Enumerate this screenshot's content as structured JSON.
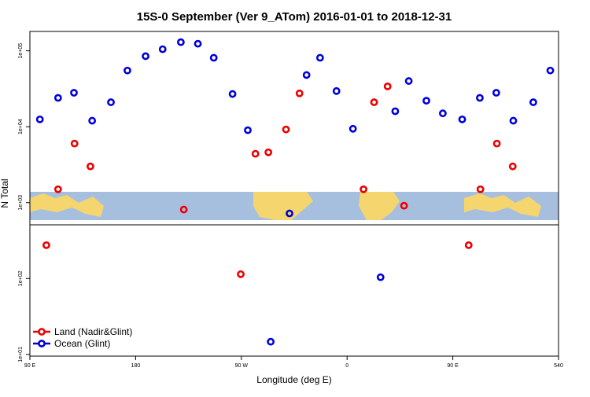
{
  "chart_data": {
    "type": "scatter",
    "title": "15S-0 September (Ver 9_ATom)   2016-01-01 to 2018-12-31",
    "x_label": "Longitude (deg E)",
    "y_label": "N Total",
    "log_y": true,
    "legend": "bottom-left",
    "xlim": [
      90,
      540
    ],
    "ylim": [
      9.5,
      180000
    ],
    "xticks": [
      {
        "value": 90,
        "label": "90 E"
      },
      180,
      {
        "value": 270,
        "label": "90 W"
      },
      {
        "value": 360,
        "label": "0"
      },
      {
        "value": 450,
        "label": "90 E"
      },
      540
    ],
    "yticks": [
      {
        "value": 10,
        "label": "1e+01"
      },
      {
        "value": 100,
        "label": "1e+02"
      },
      {
        "value": 1000,
        "label": "1e+03"
      },
      {
        "value": 10000,
        "label": "1e+04"
      },
      {
        "value": 100000,
        "label": "1e+05"
      }
    ],
    "series": [
      {
        "name": "Land (Nadir&Glint)",
        "color": "#ee0000",
        "x": [
          104,
          114,
          128,
          141.5,
          221,
          269.5,
          282,
          293,
          308,
          319.5,
          374,
          383,
          394.5,
          408.5,
          463.5,
          473.5,
          487.5,
          501
        ],
        "values": [
          275,
          1500,
          6000,
          3000,
          810,
          114,
          4400,
          4600,
          9200,
          27500,
          1500,
          21000,
          34000,
          910,
          275,
          1500,
          6000,
          3000
        ]
      },
      {
        "name": "Ocean (Glint)",
        "color": "#0000dd",
        "x": [
          98.5,
          114,
          127.5,
          143,
          159,
          173,
          188.5,
          203,
          218.5,
          233,
          246.5,
          262.5,
          275.5,
          295,
          311,
          325.5,
          337,
          351,
          365,
          388.5,
          401,
          412.5,
          427.5,
          441.5,
          458,
          473,
          487,
          501.5,
          518.5,
          533
        ],
        "values": [
          12500,
          24000,
          28000,
          12000,
          21000,
          55000,
          85000,
          105000,
          130000,
          124000,
          81000,
          27000,
          9000,
          14.7,
          720,
          48000,
          81000,
          29500,
          9400,
          104,
          16000,
          40000,
          22000,
          15000,
          12500,
          24000,
          28000,
          12000,
          21000,
          55000
        ]
      }
    ]
  }
}
